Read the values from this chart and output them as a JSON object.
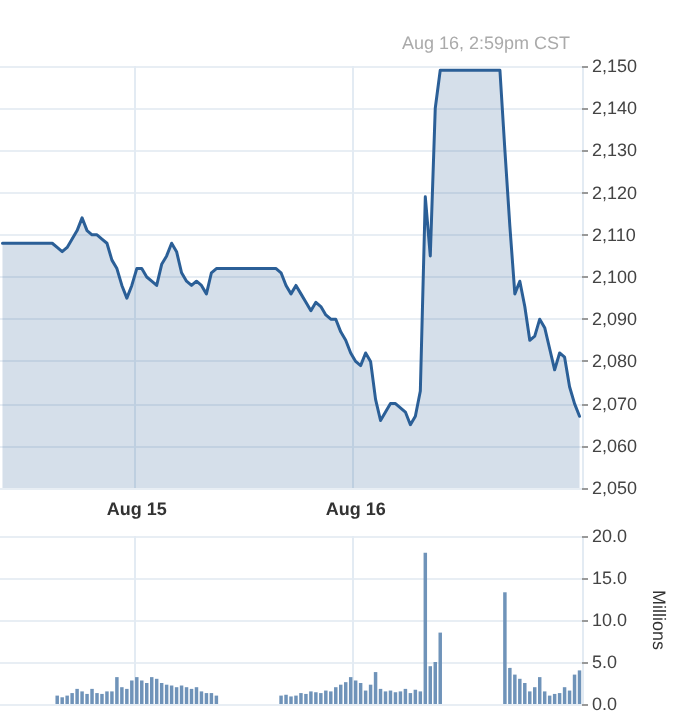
{
  "chart_data": [
    {
      "type": "area",
      "annotations": [
        "Aug 16, 2:59pm CST"
      ],
      "categories": [
        null,
        null,
        null,
        null,
        null,
        null,
        null,
        null,
        null,
        null,
        null,
        null,
        null,
        null,
        null,
        null,
        null,
        null,
        null,
        null,
        null,
        null,
        null,
        null,
        null,
        null,
        null,
        "Aug 15",
        null,
        null,
        null,
        null,
        null,
        null,
        null,
        null,
        null,
        null,
        null,
        null,
        null,
        null,
        null,
        null,
        null,
        null,
        null,
        null,
        null,
        null,
        null,
        null,
        null,
        null,
        null,
        null,
        null,
        null,
        null,
        null,
        null,
        null,
        null,
        null,
        null,
        null,
        null,
        null,
        null,
        null,
        null,
        "Aug 16",
        null,
        null,
        null,
        null,
        null,
        null,
        null,
        null,
        null,
        null,
        null,
        null,
        null,
        null,
        null,
        null,
        null,
        null,
        null,
        null,
        null,
        null,
        null,
        null,
        null,
        null,
        null,
        null,
        null,
        null,
        null,
        null,
        null,
        null,
        null,
        null,
        null,
        null,
        null,
        null,
        null,
        null,
        null,
        null,
        null
      ],
      "values": [
        2108,
        2108,
        2108,
        2108,
        2108,
        2108,
        2108,
        2108,
        2108,
        2108,
        2108,
        2107,
        2106,
        2107,
        2109,
        2111,
        2114,
        2111,
        2110,
        2110,
        2109,
        2108,
        2104,
        2102,
        2098,
        2095,
        2098,
        2102,
        2102,
        2100,
        2099,
        2098,
        2103,
        2105,
        2108,
        2106,
        2101,
        2099,
        2098,
        2099,
        2098,
        2096,
        2101,
        2102,
        2102,
        2102,
        2102,
        2102,
        2102,
        2102,
        2102,
        2102,
        2102,
        2102,
        2102,
        2102,
        2101,
        2098,
        2096,
        2098,
        2096,
        2094,
        2092,
        2094,
        2093,
        2091,
        2090,
        2090,
        2087,
        2085,
        2082,
        2080,
        2079,
        2082,
        2080,
        2071,
        2066,
        2068,
        2070,
        2070,
        2069,
        2068,
        2065,
        2067,
        2073,
        2119,
        2105,
        2140,
        2149,
        2149,
        2149,
        2149,
        2149,
        2149,
        2149,
        2149,
        2149,
        2149,
        2149,
        2149,
        2149,
        2130,
        2112,
        2096,
        2099,
        2093,
        2085,
        2086,
        2090,
        2088,
        2083,
        2078,
        2082,
        2081,
        2074,
        2070,
        2067
      ],
      "color": "#2b5f97",
      "ylim": [
        2050,
        2150
      ],
      "yticks": [
        {
          "value": 2050,
          "label": "2,050"
        },
        {
          "value": 2060,
          "label": "2,060"
        },
        {
          "value": 2070,
          "label": "2,070"
        },
        {
          "value": 2080,
          "label": "2,080"
        },
        {
          "value": 2090,
          "label": "2,090"
        },
        {
          "value": 2100,
          "label": "2,100"
        },
        {
          "value": 2110,
          "label": "2,110"
        },
        {
          "value": 2120,
          "label": "2,120"
        },
        {
          "value": 2130,
          "label": "2,130"
        },
        {
          "value": 2140,
          "label": "2,140"
        },
        {
          "value": 2150,
          "label": "2,150"
        }
      ],
      "grid": true,
      "marker": "none"
    },
    {
      "type": "bar",
      "ylabel": "Millions",
      "tick_labels": "y",
      "categories": [
        null,
        null,
        null,
        null,
        null,
        null,
        null,
        null,
        null,
        null,
        null,
        null,
        null,
        null,
        null,
        null,
        null,
        null,
        null,
        null,
        null,
        null,
        null,
        null,
        null,
        null,
        null,
        null,
        null,
        null,
        null,
        null,
        null,
        null,
        null,
        null,
        null,
        null,
        null,
        null,
        null,
        null,
        null,
        null,
        null,
        null,
        null,
        null,
        null,
        null,
        null,
        null,
        null,
        null,
        null,
        null,
        null,
        null,
        null,
        null,
        null,
        null,
        null,
        null,
        null,
        null,
        null,
        null,
        null,
        null,
        null,
        null,
        null,
        null,
        null,
        null,
        null,
        null,
        null,
        null,
        null,
        null,
        null,
        null,
        null,
        null,
        null,
        null,
        null,
        null,
        null,
        null,
        null,
        null,
        null,
        null,
        null,
        null,
        null,
        null,
        null,
        null,
        null,
        null,
        null,
        null,
        null,
        null,
        null,
        null,
        null,
        null,
        null,
        null,
        null,
        null,
        null
      ],
      "values": [
        null,
        null,
        null,
        null,
        null,
        null,
        null,
        null,
        null,
        null,
        null,
        1.0,
        0.8,
        1.0,
        1.3,
        1.8,
        1.5,
        1.2,
        1.8,
        1.3,
        1.2,
        1.5,
        1.5,
        3.2,
        2.0,
        1.8,
        2.8,
        3.2,
        2.8,
        2.5,
        3.2,
        3.0,
        2.5,
        2.3,
        2.2,
        2.0,
        2.2,
        2.0,
        1.8,
        2.0,
        1.5,
        1.3,
        1.3,
        1.0,
        null,
        null,
        null,
        null,
        null,
        null,
        null,
        null,
        null,
        null,
        null,
        null,
        1.0,
        1.1,
        0.9,
        1.0,
        1.3,
        1.2,
        1.5,
        1.4,
        1.3,
        1.6,
        1.5,
        2.0,
        2.3,
        2.6,
        3.2,
        2.8,
        2.5,
        1.6,
        2.3,
        3.8,
        1.8,
        1.5,
        1.6,
        1.4,
        1.5,
        1.8,
        1.3,
        1.7,
        1.5,
        18.0,
        4.5,
        5.0,
        8.5,
        null,
        null,
        null,
        null,
        null,
        null,
        null,
        null,
        null,
        null,
        null,
        null,
        13.3,
        4.3,
        3.5,
        3.0,
        2.5,
        1.5,
        2.0,
        3.2,
        1.5,
        1.0,
        1.2,
        1.3,
        2.0,
        1.6,
        3.5,
        4.0
      ],
      "color": "#6f93b9",
      "ylim": [
        0,
        20
      ],
      "yticks": [
        {
          "value": 0,
          "label": "0.0"
        },
        {
          "value": 5,
          "label": "5.0"
        },
        {
          "value": 10,
          "label": "10.0"
        },
        {
          "value": 15,
          "label": "15.0"
        },
        {
          "value": 20,
          "label": "20.0"
        }
      ],
      "grid": true
    }
  ]
}
